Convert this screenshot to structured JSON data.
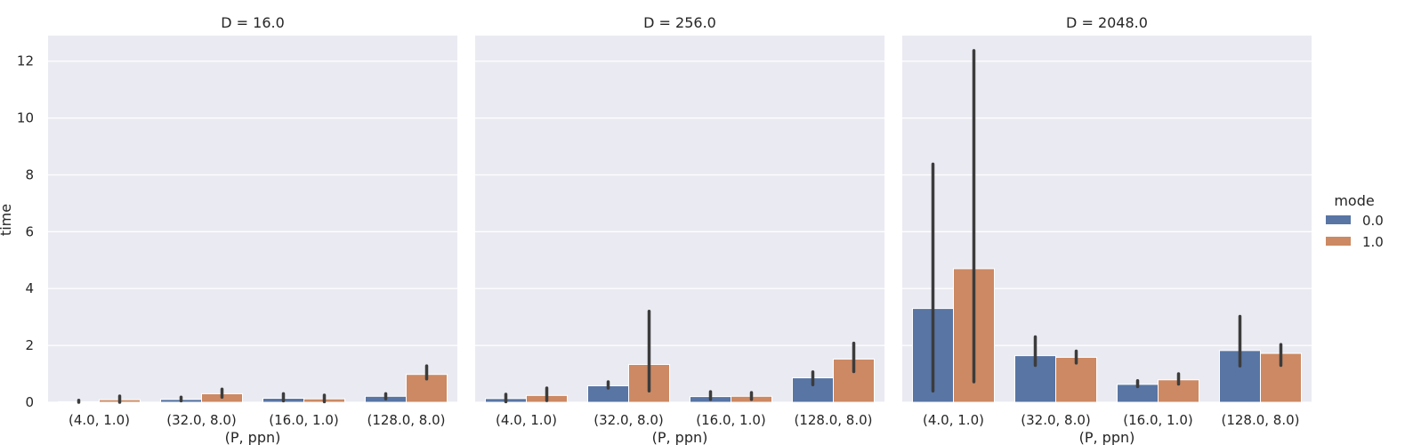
{
  "chart_data": {
    "type": "bar",
    "ylabel": "time",
    "xlabel": "(P, ppn)",
    "ylim": [
      0,
      12.9
    ],
    "yticks": [
      0,
      2,
      4,
      6,
      8,
      10,
      12
    ],
    "categories": [
      "(4.0, 1.0)",
      "(32.0, 8.0)",
      "(16.0, 1.0)",
      "(128.0, 8.0)"
    ],
    "legend": {
      "title": "mode",
      "placement": "right"
    },
    "colors": {
      "0.0": "#5875a4",
      "1.0": "#cc8963",
      "errbar": "#3c3c3c",
      "panel_bg": "#eaeaf2",
      "grid": "#ffffff"
    },
    "panels": [
      {
        "title": "D = 16.0",
        "series": [
          {
            "name": "0.0",
            "values": [
              0.02,
              0.1,
              0.14,
              0.21
            ],
            "ci": [
              [
                0.0,
                0.07
              ],
              [
                0.05,
                0.18
              ],
              [
                0.05,
                0.3
              ],
              [
                0.12,
                0.3
              ]
            ]
          },
          {
            "name": "1.0",
            "values": [
              0.09,
              0.3,
              0.12,
              0.98
            ],
            "ci": [
              [
                0.0,
                0.22
              ],
              [
                0.18,
                0.46
              ],
              [
                0.02,
                0.25
              ],
              [
                0.82,
                1.28
              ]
            ]
          }
        ]
      },
      {
        "title": "D = 256.0",
        "series": [
          {
            "name": "0.0",
            "values": [
              0.13,
              0.58,
              0.2,
              0.86
            ],
            "ci": [
              [
                0.02,
                0.28
              ],
              [
                0.5,
                0.72
              ],
              [
                0.1,
                0.37
              ],
              [
                0.62,
                1.07
              ]
            ]
          },
          {
            "name": "1.0",
            "values": [
              0.24,
              1.33,
              0.21,
              1.52
            ],
            "ci": [
              [
                0.06,
                0.5
              ],
              [
                0.4,
                3.2
              ],
              [
                0.1,
                0.34
              ],
              [
                1.08,
                2.08
              ]
            ]
          }
        ]
      },
      {
        "title": "D = 2048.0",
        "series": [
          {
            "name": "0.0",
            "values": [
              3.3,
              1.64,
              0.63,
              1.82
            ],
            "ci": [
              [
                0.4,
                8.38
              ],
              [
                1.3,
                2.3
              ],
              [
                0.55,
                0.76
              ],
              [
                1.28,
                3.02
              ]
            ]
          },
          {
            "name": "1.0",
            "values": [
              4.7,
              1.58,
              0.79,
              1.72
            ],
            "ci": [
              [
                0.72,
                12.37
              ],
              [
                1.38,
                1.8
              ],
              [
                0.64,
                1.0
              ],
              [
                1.3,
                2.03
              ]
            ]
          }
        ]
      }
    ]
  }
}
